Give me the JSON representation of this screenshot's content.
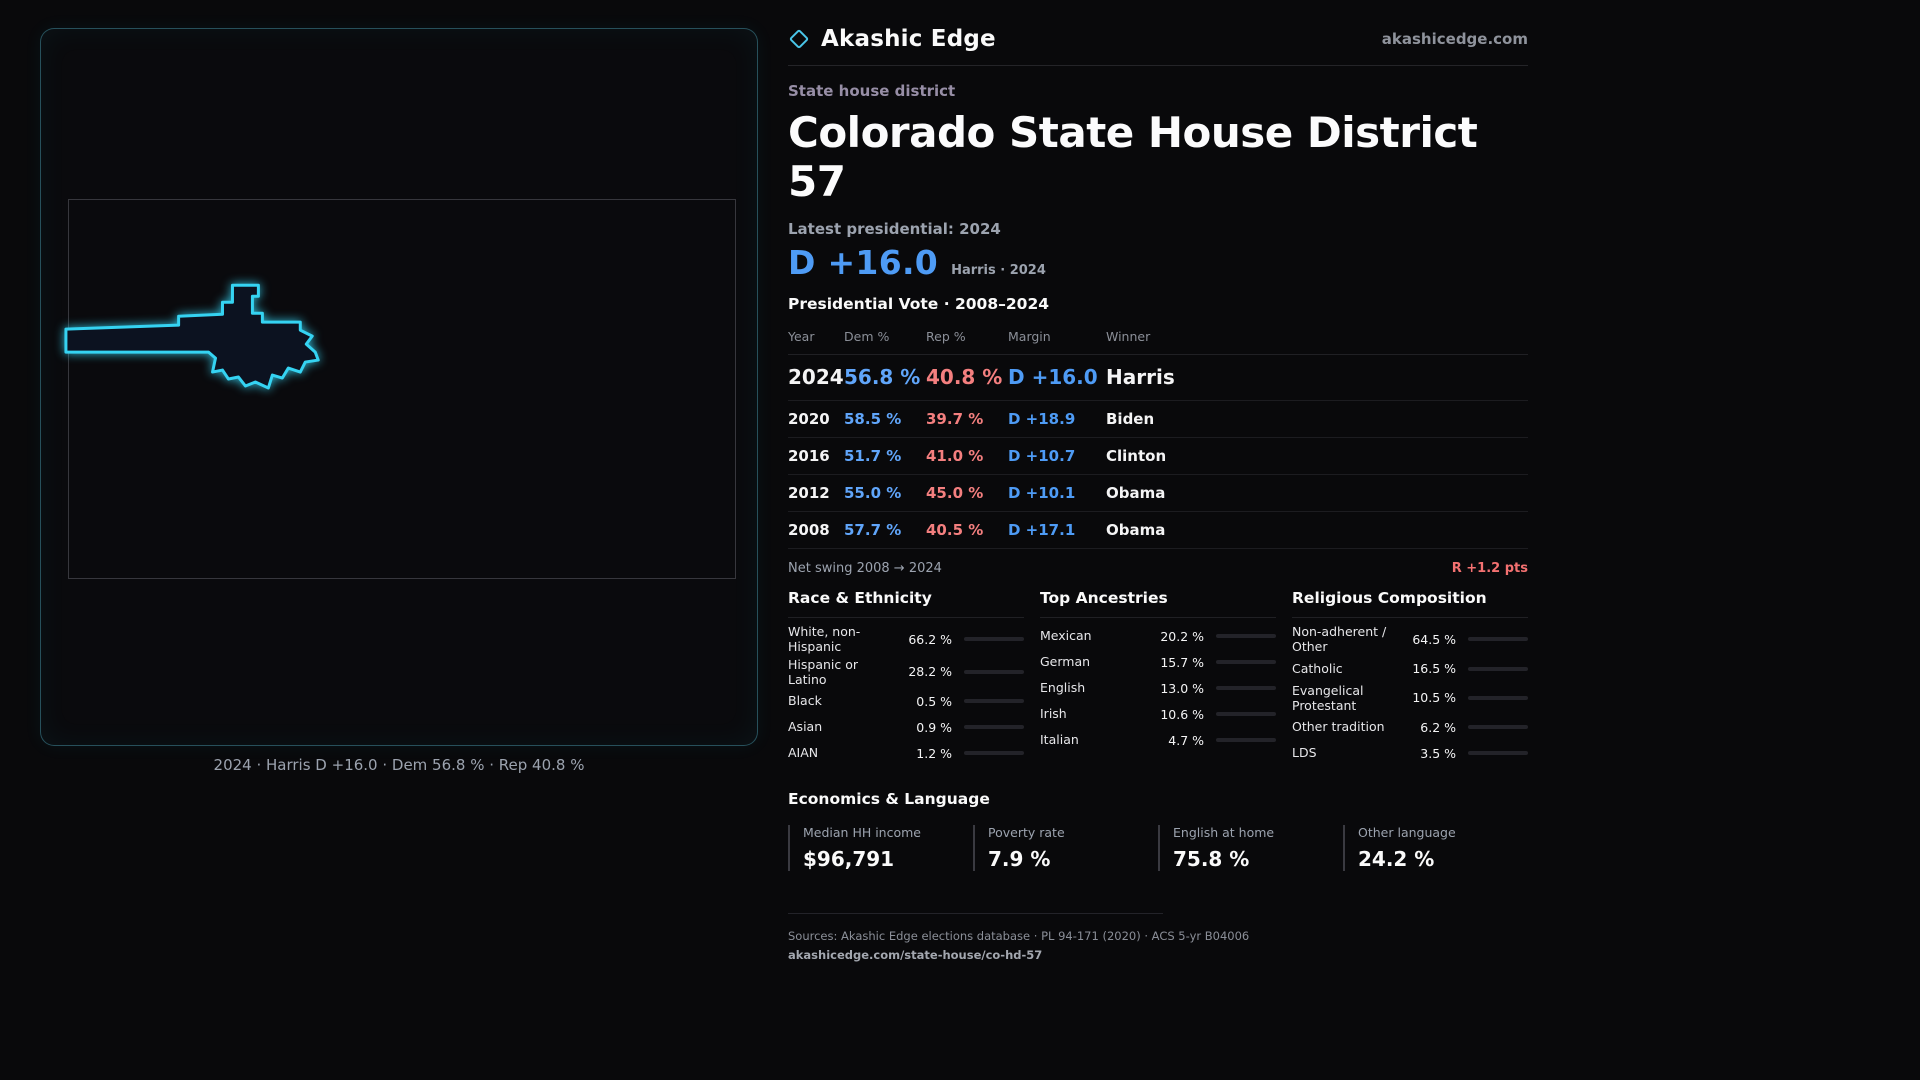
{
  "brand": {
    "name": "Akashic Edge",
    "site": "akashicedge.com"
  },
  "map": {
    "caption": "2024 · Harris D +16.0 · Dem 56.8 % · Rep 40.8 %"
  },
  "header": {
    "eyebrow": "State house district",
    "title": "Colorado State House District 57",
    "latest_label": "Latest presidential: 2024",
    "margin_value": "D +16.0",
    "margin_sub": "Harris · 2024"
  },
  "vote_table": {
    "title": "Presidential Vote · 2008–2024",
    "columns": {
      "year": "Year",
      "dem": "Dem %",
      "rep": "Rep %",
      "margin": "Margin",
      "winner": "Winner"
    },
    "rows": [
      {
        "year": "2024",
        "dem": "56.8 %",
        "rep": "40.8 %",
        "margin": "D +16.0",
        "winner": "Harris"
      },
      {
        "year": "2020",
        "dem": "58.5 %",
        "rep": "39.7 %",
        "margin": "D +18.9",
        "winner": "Biden"
      },
      {
        "year": "2016",
        "dem": "51.7 %",
        "rep": "41.0 %",
        "margin": "D +10.7",
        "winner": "Clinton"
      },
      {
        "year": "2012",
        "dem": "55.0 %",
        "rep": "45.0 %",
        "margin": "D +10.1",
        "winner": "Obama"
      },
      {
        "year": "2008",
        "dem": "57.7 %",
        "rep": "40.5 %",
        "margin": "D +17.1",
        "winner": "Obama"
      }
    ],
    "net_swing_label": "Net swing 2008 → 2024",
    "net_swing_value": "R +1.2 pts"
  },
  "demographics": {
    "race": {
      "title": "Race & Ethnicity",
      "rows": [
        {
          "label": "White, non-Hispanic",
          "value": "66.2 %",
          "pct": 66.2,
          "color": "#9ca3af"
        },
        {
          "label": "Hispanic or Latino",
          "value": "28.2 %",
          "pct": 28.2,
          "color": "#fbbf24"
        },
        {
          "label": "Black",
          "value": "0.5 %",
          "pct": 0.5,
          "color": "#9ca3af"
        },
        {
          "label": "Asian",
          "value": "0.9 %",
          "pct": 0.9,
          "color": "#34d399"
        },
        {
          "label": "AIAN",
          "value": "1.2 %",
          "pct": 1.2,
          "color": "#f47171"
        }
      ]
    },
    "ancestries": {
      "title": "Top Ancestries",
      "rows": [
        {
          "label": "Mexican",
          "value": "20.2 %",
          "pct": 20.2,
          "color": "#fbbf24"
        },
        {
          "label": "German",
          "value": "15.7 %",
          "pct": 15.7,
          "color": "#94a3b8"
        },
        {
          "label": "English",
          "value": "13.0 %",
          "pct": 13.0,
          "color": "#9ca3af"
        },
        {
          "label": "Irish",
          "value": "10.6 %",
          "pct": 10.6,
          "color": "#60a5fa"
        },
        {
          "label": "Italian",
          "value": "4.7 %",
          "pct": 4.7,
          "color": "#9ca3af"
        }
      ]
    },
    "religion": {
      "title": "Religious Composition",
      "rows": [
        {
          "label": "Non-adherent / Other",
          "value": "64.5 %",
          "pct": 64.5,
          "color": "#9ca3af"
        },
        {
          "label": "Catholic",
          "value": "16.5 %",
          "pct": 16.5,
          "color": "#fbbf24"
        },
        {
          "label": "Evangelical Protestant",
          "value": "10.5 %",
          "pct": 10.5,
          "color": "#f47171"
        },
        {
          "label": "Other tradition",
          "value": "6.2 %",
          "pct": 6.2,
          "color": "#9ca3af"
        },
        {
          "label": "LDS",
          "value": "3.5 %",
          "pct": 3.5,
          "color": "#2dd4bf"
        }
      ]
    }
  },
  "economics": {
    "title": "Economics & Language",
    "stats": [
      {
        "label": "Median HH income",
        "value": "$96,791"
      },
      {
        "label": "Poverty rate",
        "value": "7.9 %"
      },
      {
        "label": "English at home",
        "value": "75.8 %"
      },
      {
        "label": "Other language",
        "value": "24.2 %"
      }
    ]
  },
  "footer": {
    "sources": "Sources: Akashic Edge elections database · PL 94-171 (2020) · ACS 5-yr B04006",
    "link": "akashicedge.com/state-house/co-hd-57"
  }
}
